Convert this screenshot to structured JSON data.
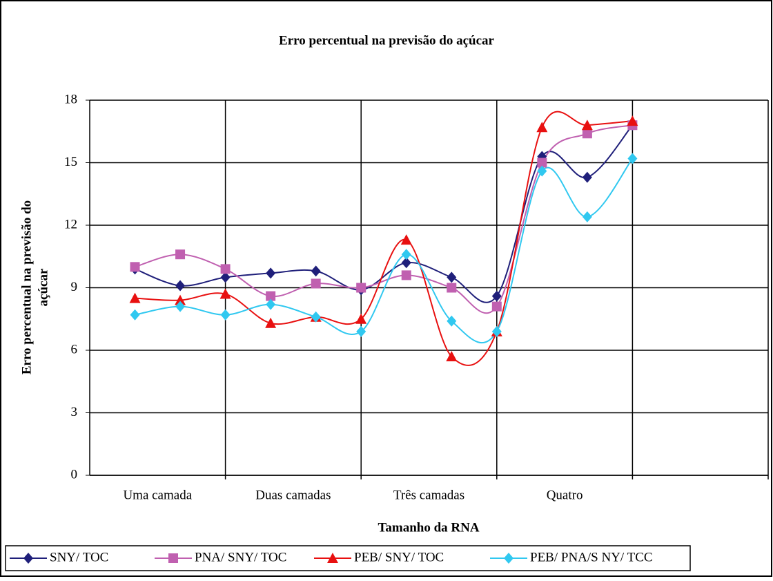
{
  "chart_data": {
    "type": "line",
    "title": "Erro percentual na previsão do açúcar",
    "xlabel": "Tamanho da RNA",
    "ylabel": [
      "Erro percentual na previsão do",
      "açúcar"
    ],
    "x": [
      1,
      2,
      3,
      4,
      5,
      6,
      7,
      8,
      9,
      10,
      11,
      12
    ],
    "xlim": [
      0,
      15
    ],
    "xticks": [
      {
        "value": 1.5,
        "label": "Uma camada"
      },
      {
        "value": 4.5,
        "label": "Duas camadas"
      },
      {
        "value": 7.5,
        "label": "Três camadas"
      },
      {
        "value": 10.5,
        "label": "Quatro"
      }
    ],
    "xgrid": [
      3,
      6,
      9,
      12,
      15
    ],
    "ylim": [
      0,
      18
    ],
    "yticks": [
      0,
      3,
      6,
      9,
      12,
      15,
      18
    ],
    "grid": true,
    "smooth": true,
    "legend": "bottom",
    "series": [
      {
        "name": "SNY/ TOC",
        "color": "#1f1f7a",
        "marker": "diamond",
        "values": [
          9.9,
          9.1,
          9.5,
          9.7,
          9.8,
          8.9,
          10.2,
          9.5,
          8.6,
          15.3,
          14.3,
          16.8
        ]
      },
      {
        "name": "PNA/ SNY/ TOC",
        "color": "#c060b0",
        "marker": "square",
        "values": [
          10.0,
          10.6,
          9.9,
          8.6,
          9.2,
          9.0,
          9.6,
          9.0,
          8.1,
          15.0,
          16.4,
          16.8
        ]
      },
      {
        "name": "PEB/ SNY/ TOC",
        "color": "#e81010",
        "marker": "triangle",
        "values": [
          8.5,
          8.4,
          8.7,
          7.3,
          7.6,
          7.5,
          11.3,
          5.7,
          6.9,
          16.7,
          16.8,
          17.0
        ]
      },
      {
        "name": "PEB/ PNA/S NY/ TCC",
        "color": "#30c8f0",
        "marker": "diamond",
        "values": [
          7.7,
          8.1,
          7.7,
          8.2,
          7.6,
          6.9,
          10.6,
          7.4,
          6.9,
          14.6,
          12.4,
          15.2
        ]
      }
    ]
  }
}
